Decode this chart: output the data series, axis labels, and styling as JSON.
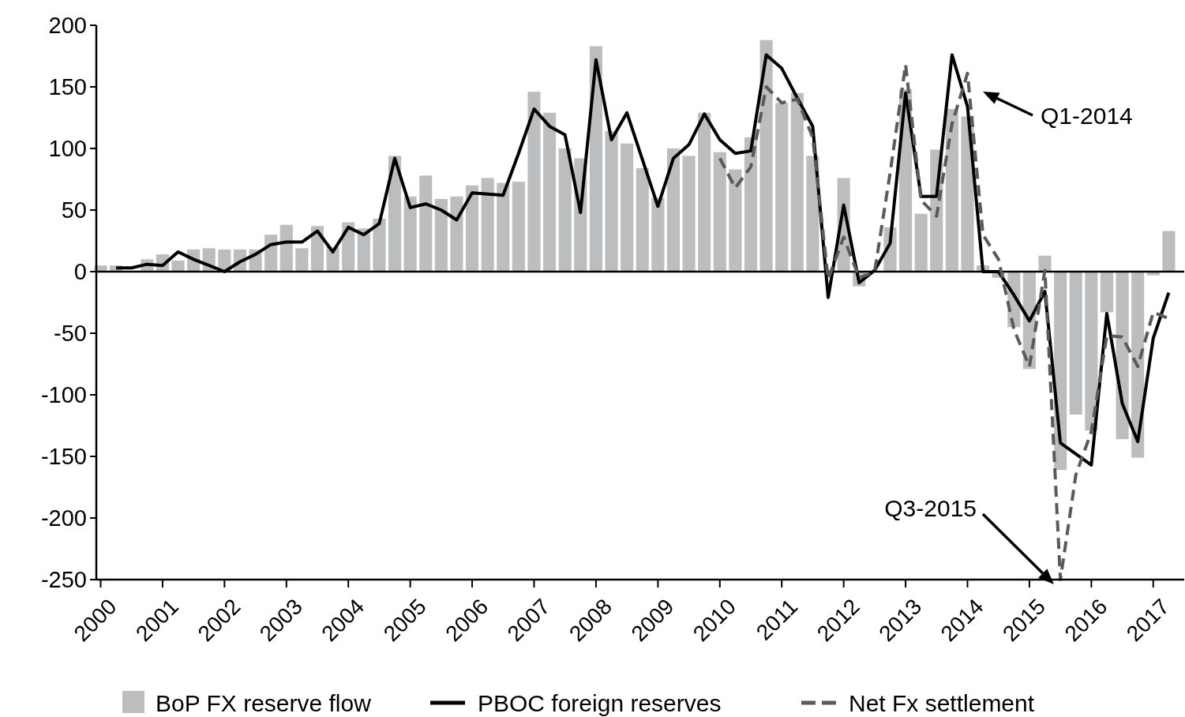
{
  "chart_data": {
    "type": "bar",
    "xlim": [
      1999.93,
      2017.5
    ],
    "ylim": [
      -250,
      200
    ],
    "xticks": [
      2000,
      2001,
      2002,
      2003,
      2004,
      2005,
      2006,
      2007,
      2008,
      2009,
      2010,
      2011,
      2012,
      2013,
      2014,
      2015,
      2016,
      2017
    ],
    "yticks": [
      -250,
      -200,
      -150,
      -100,
      -50,
      0,
      50,
      100,
      150,
      200
    ],
    "legend": "bottom",
    "series": [
      {
        "name": "BoP FX reserve flow",
        "color": "#bcbdbf",
        "x": [
          2000,
          2000.25,
          2000.5,
          2000.75,
          2001,
          2001.25,
          2001.5,
          2001.75,
          2002,
          2002.25,
          2002.5,
          2002.75,
          2003,
          2003.25,
          2003.5,
          2003.75,
          2004,
          2004.25,
          2004.5,
          2004.75,
          2005,
          2005.25,
          2005.5,
          2005.75,
          2006,
          2006.25,
          2006.5,
          2006.75,
          2007,
          2007.25,
          2007.5,
          2007.75,
          2008,
          2008.25,
          2008.5,
          2008.75,
          2009,
          2009.25,
          2009.5,
          2009.75,
          2010,
          2010.25,
          2010.5,
          2010.75,
          2011,
          2011.25,
          2011.5,
          2011.75,
          2012,
          2012.25,
          2012.5,
          2012.75,
          2013,
          2013.25,
          2013.5,
          2013.75,
          2014,
          2014.25,
          2014.5,
          2014.75,
          2015,
          2015.25,
          2015.5,
          2015.75,
          2016,
          2016.25,
          2016.5,
          2016.75,
          2017,
          2017.25
        ],
        "values": [
          5,
          5,
          null,
          10,
          14,
          9,
          18,
          19,
          18,
          18,
          18,
          30,
          38,
          19,
          37,
          20,
          40,
          35,
          43,
          94,
          61,
          78,
          59,
          61,
          70,
          76,
          72,
          73,
          146,
          129,
          100,
          92,
          183,
          114,
          104,
          84,
          60,
          100,
          94,
          129,
          97,
          83,
          109,
          188,
          137,
          145,
          94,
          null,
          76,
          -12,
          null,
          36,
          148,
          47,
          99,
          132,
          126,
          5,
          -5,
          -45,
          -79,
          13,
          -161,
          -116,
          -129,
          -33,
          -136,
          -151,
          -3,
          33
        ]
      },
      {
        "name": "PBOC foreign reserves",
        "type": "line",
        "color": "#000000",
        "line_style": "solid",
        "x": [
          2000.25,
          2000.5,
          2000.75,
          2001,
          2001.25,
          2001.5,
          2001.75,
          2002,
          2002.25,
          2002.5,
          2002.75,
          2003,
          2003.25,
          2003.5,
          2003.75,
          2004,
          2004.25,
          2004.5,
          2004.75,
          2005,
          2005.25,
          2005.5,
          2005.75,
          2006,
          2006.25,
          2006.5,
          2006.75,
          2007,
          2007.25,
          2007.5,
          2007.75,
          2008,
          2008.25,
          2008.5,
          2008.75,
          2009,
          2009.25,
          2009.5,
          2009.75,
          2010,
          2010.25,
          2010.5,
          2010.75,
          2011,
          2011.25,
          2011.5,
          2011.75,
          2012,
          2012.25,
          2012.5,
          2012.75,
          2013,
          2013.25,
          2013.5,
          2013.75,
          2014,
          2014.25,
          2014.5,
          2014.75,
          2015,
          2015.25,
          2015.5,
          2015.75,
          2016,
          2016.25,
          2016.5,
          2016.75,
          2017,
          2017.25
        ],
        "values": [
          3,
          3,
          6,
          5,
          16,
          10,
          5,
          0,
          8,
          14,
          22,
          24,
          24,
          33,
          16,
          36,
          30,
          39,
          92,
          52,
          55,
          50,
          42,
          64,
          63,
          62,
          96,
          132,
          118,
          111,
          48,
          172,
          107,
          129,
          91,
          53,
          92,
          103,
          128,
          107,
          96,
          98,
          176,
          165,
          141,
          118,
          -21,
          54,
          -9,
          1,
          23,
          145,
          61,
          61,
          176,
          134,
          0,
          0,
          -19,
          -40,
          -16,
          -139,
          -148,
          -157,
          -34,
          -107,
          -138,
          -54,
          -17
        ]
      },
      {
        "name": "Net Fx settlement",
        "type": "line",
        "color": "#5a5a5a",
        "line_style": "dashed",
        "x": [
          2010,
          2010.25,
          2010.5,
          2010.75,
          2011,
          2011.25,
          2011.5,
          2011.75,
          2012,
          2012.25,
          2012.5,
          2012.75,
          2013,
          2013.25,
          2013.5,
          2013.75,
          2014,
          2014.25,
          2014.5,
          2014.75,
          2015,
          2015.25,
          2015.5,
          2015.75,
          2016,
          2016.25,
          2016.5,
          2016.75,
          2017,
          2017.25
        ],
        "values": [
          92,
          68,
          85,
          150,
          137,
          140,
          109,
          -6,
          28,
          -5,
          0,
          80,
          168,
          58,
          45,
          120,
          161,
          30,
          10,
          -47,
          -77,
          1,
          -250,
          -165,
          -130,
          -52,
          -53,
          -77,
          -33,
          -38
        ]
      }
    ],
    "annotations": [
      "Q1-2014",
      "Q3-2015"
    ]
  }
}
